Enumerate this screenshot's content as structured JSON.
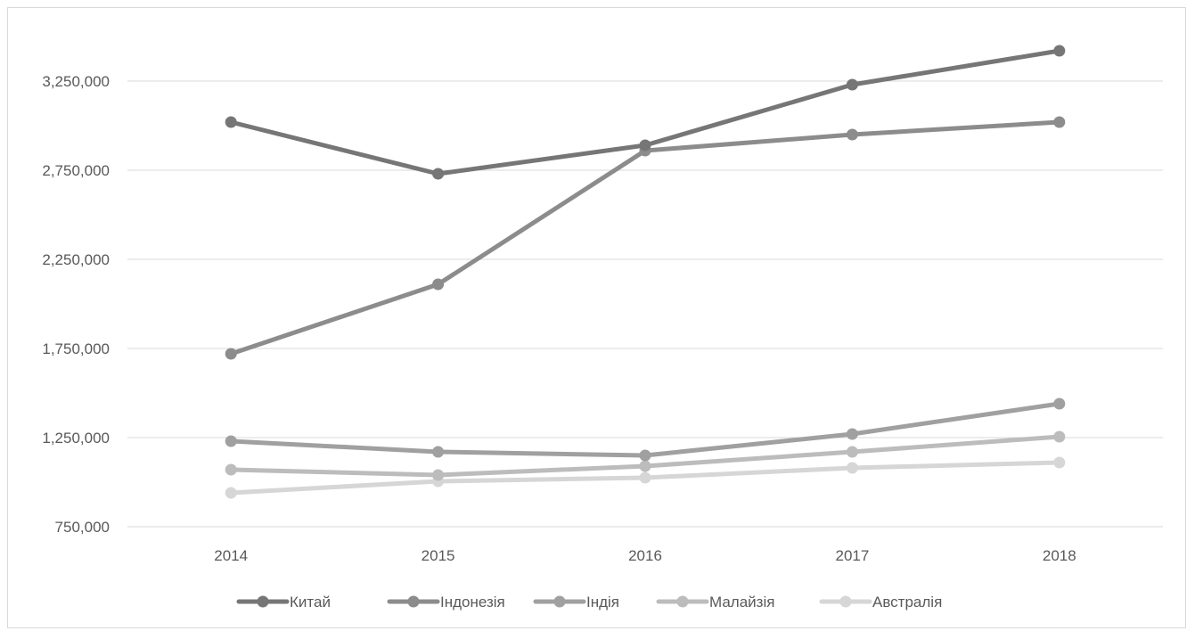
{
  "chart_data": {
    "type": "line",
    "title": "",
    "xlabel": "",
    "ylabel": "",
    "categories": [
      "2014",
      "2015",
      "2016",
      "2017",
      "2018"
    ],
    "ylim": [
      750000,
      3550000
    ],
    "yticks": [
      750000,
      1250000,
      1750000,
      2250000,
      2750000,
      3250000
    ],
    "ytick_labels": [
      "750,000",
      "1,250,000",
      "1,750,000",
      "2,250,000",
      "2,750,000",
      "3,250,000"
    ],
    "grid": true,
    "legend_position": "bottom",
    "series": [
      {
        "name": "Китай",
        "color": "#767676",
        "values": [
          3020000,
          2730000,
          2890000,
          3230000,
          3420000
        ]
      },
      {
        "name": "Індонезія",
        "color": "#8c8c8c",
        "values": [
          1720000,
          2110000,
          2860000,
          2950000,
          3020000
        ]
      },
      {
        "name": "Індія",
        "color": "#a0a0a0",
        "values": [
          1230000,
          1170000,
          1150000,
          1270000,
          1440000
        ]
      },
      {
        "name": "Малайзія",
        "color": "#bcbcbc",
        "values": [
          1070000,
          1040000,
          1090000,
          1170000,
          1255000
        ]
      },
      {
        "name": "Австралія",
        "color": "#d6d6d6",
        "values": [
          940000,
          1005000,
          1025000,
          1080000,
          1110000
        ]
      }
    ]
  }
}
